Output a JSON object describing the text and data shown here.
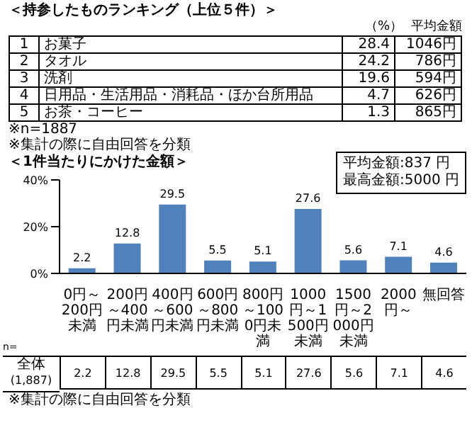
{
  "chart_data": {
    "type": "bar",
    "title": "＜1件当たりにかけた金額＞",
    "categories": [
      "0円～200円未満",
      "200円～400円未満",
      "400円～600円未満",
      "600円～800円未満",
      "800円～1000円未満",
      "1000円～1500円未満",
      "1500円～2000円未満",
      "2000円～",
      "無回答"
    ],
    "values": [
      2.2,
      12.8,
      29.5,
      5.5,
      5.1,
      27.6,
      5.6,
      7.1,
      4.6
    ],
    "color": "#4f81bd",
    "ylim": [
      0,
      40
    ],
    "yticks": [
      {
        "value": 0,
        "label": "0%"
      },
      {
        "value": 20,
        "label": "20%"
      },
      {
        "value": 40,
        "label": "40%"
      }
    ],
    "value_labels": [
      "2.2",
      "12.8",
      "29.5",
      "5.5",
      "5.1",
      "27.6",
      "5.6",
      "7.1",
      "4.6"
    ],
    "annotations": [
      "＜持参したものランキング（上位５件）＞",
      "（%）",
      "平均金額",
      "1",
      "お菓子",
      "28.4",
      "1046円",
      "2",
      "タオル",
      "24.2",
      "786円",
      "3",
      "洗剤",
      "19.6",
      "594円",
      "4",
      "日用品・生活用品・消耗品・ほか台所用品",
      "4.7",
      "626円",
      "5",
      "お茶・コーヒー",
      "1.3",
      "865円",
      "※n=1887",
      "※集計の際に自由回答を分類",
      "平均金額:837 円",
      "最高金額:5000 円",
      "n=",
      "全体",
      "(1,887)",
      "※集計の際に自由回答を分類",
      "2.2",
      "12.8",
      "29.5",
      "5.5",
      "5.1",
      "27.6",
      "5.6",
      "7.1",
      "4.6"
    ]
  }
}
